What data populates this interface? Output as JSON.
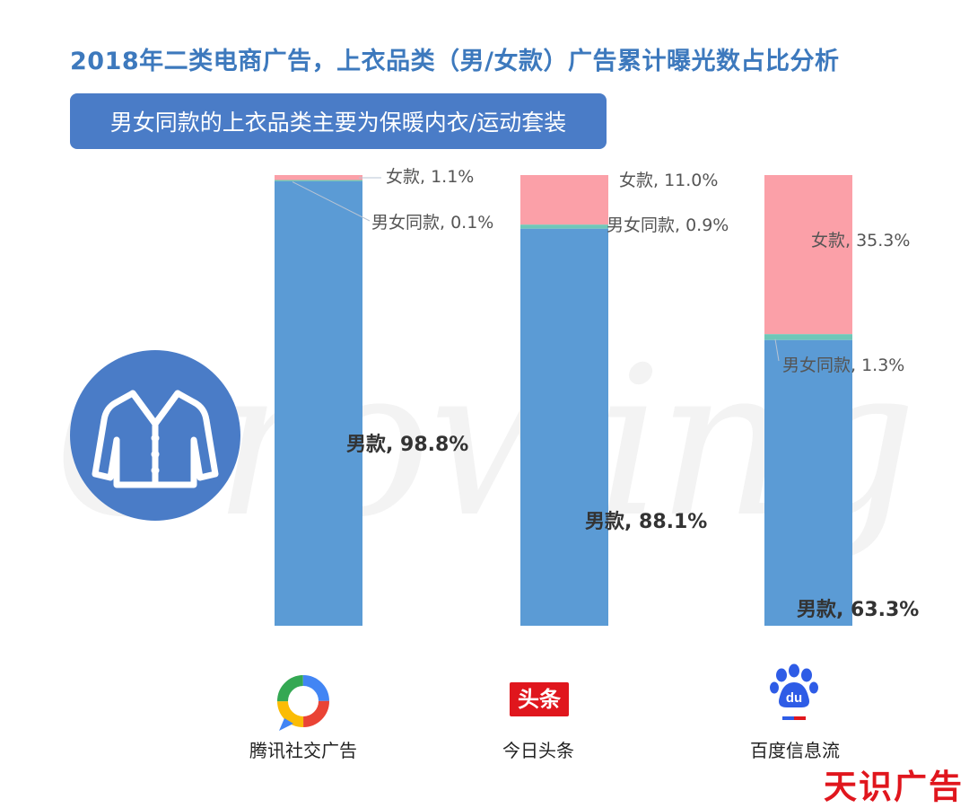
{
  "header": {
    "title": "2018年二类电商广告，上衣品类（男/女款）广告累计曝光数占比分析",
    "subtitle": "男女同款的上衣品类主要为保暖内衣/运动套装"
  },
  "watermark": "Growing",
  "colors": {
    "men": "#5b9bd5",
    "women": "#fba0a8",
    "unisex": "#6fc7b8",
    "title": "#3d79bd",
    "subtitle_bg": "#4a7cc7",
    "brand": "#e0161d"
  },
  "icons": [
    "jacket-icon",
    "tencent-logo-icon",
    "toutiao-logo-icon",
    "baidu-logo-icon"
  ],
  "platforms": [
    {
      "name": "腾讯社交广告",
      "logo_text": ""
    },
    {
      "name": "今日头条",
      "logo_text": "头条"
    },
    {
      "name": "百度信息流",
      "logo_text": "du"
    }
  ],
  "chart_data": {
    "type": "bar",
    "stacked": true,
    "unit": "%",
    "categories": [
      "腾讯社交广告",
      "今日头条",
      "百度信息流"
    ],
    "series": [
      {
        "name": "男款",
        "values": [
          98.8,
          88.1,
          63.3
        ],
        "labels": [
          "男款, 98.8%",
          "男款, 88.1%",
          "男款, 63.3%"
        ]
      },
      {
        "name": "男女同款",
        "values": [
          0.1,
          0.9,
          1.3
        ],
        "labels": [
          "男女同款, 0.1%",
          "男女同款, 0.9%",
          "男女同款, 1.3%"
        ]
      },
      {
        "name": "女款",
        "values": [
          1.1,
          11.0,
          35.3
        ],
        "labels": [
          "女款, 1.1%",
          "女款, 11.0%",
          "女款, 35.3%"
        ]
      }
    ],
    "ylim": [
      0,
      100
    ],
    "grid": false,
    "legend": "none"
  },
  "brand": {
    "text": "天识广告"
  }
}
